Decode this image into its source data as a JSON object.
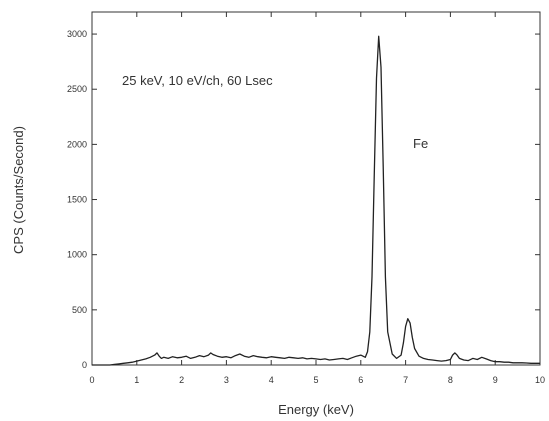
{
  "chart_data": {
    "type": "line",
    "xlabel": "Energy (keV)",
    "ylabel": "CPS (Counts/Second)",
    "xlim": [
      0,
      10
    ],
    "ylim": [
      0,
      3200
    ],
    "xticks": [
      0,
      1,
      2,
      3,
      4,
      5,
      6,
      7,
      8,
      9,
      10
    ],
    "yticks": [
      0,
      500,
      1000,
      1500,
      2000,
      2500,
      3000
    ],
    "grid": false,
    "legend": "none",
    "annotations": [
      {
        "text": "25 keV, 10 eV/ch, 60 Lsec",
        "x": 1.3,
        "y": 2650
      },
      {
        "text": "Fe",
        "x": 7.3,
        "y": 1950
      }
    ],
    "series": [
      {
        "color": "#222222",
        "x": [
          0.0,
          0.1,
          0.2,
          0.3,
          0.4,
          0.5,
          0.6,
          0.7,
          0.8,
          0.9,
          1.0,
          1.1,
          1.2,
          1.3,
          1.4,
          1.45,
          1.5,
          1.55,
          1.6,
          1.7,
          1.8,
          1.9,
          2.0,
          2.1,
          2.2,
          2.3,
          2.4,
          2.5,
          2.6,
          2.65,
          2.7,
          2.8,
          2.9,
          3.0,
          3.1,
          3.2,
          3.3,
          3.4,
          3.5,
          3.6,
          3.7,
          3.8,
          3.9,
          4.0,
          4.1,
          4.2,
          4.3,
          4.4,
          4.5,
          4.6,
          4.7,
          4.8,
          4.9,
          5.0,
          5.1,
          5.2,
          5.3,
          5.4,
          5.5,
          5.6,
          5.7,
          5.8,
          5.9,
          6.0,
          6.1,
          6.15,
          6.2,
          6.25,
          6.3,
          6.35,
          6.4,
          6.45,
          6.5,
          6.55,
          6.6,
          6.7,
          6.8,
          6.9,
          6.95,
          7.0,
          7.05,
          7.1,
          7.15,
          7.2,
          7.3,
          7.4,
          7.5,
          7.6,
          7.7,
          7.8,
          7.9,
          8.0,
          8.05,
          8.1,
          8.15,
          8.2,
          8.3,
          8.4,
          8.5,
          8.6,
          8.7,
          8.8,
          8.9,
          9.0,
          9.1,
          9.2,
          9.3,
          9.4,
          9.5,
          9.6,
          9.7,
          9.8,
          9.9,
          10.0
        ],
        "y": [
          0,
          0,
          0,
          0,
          0,
          5,
          10,
          15,
          20,
          25,
          35,
          45,
          55,
          70,
          90,
          110,
          80,
          60,
          70,
          60,
          75,
          65,
          70,
          80,
          60,
          70,
          85,
          75,
          90,
          110,
          95,
          80,
          70,
          75,
          65,
          85,
          100,
          80,
          70,
          85,
          75,
          70,
          65,
          75,
          70,
          65,
          60,
          70,
          65,
          60,
          65,
          55,
          60,
          55,
          50,
          55,
          45,
          50,
          55,
          60,
          50,
          65,
          80,
          90,
          70,
          120,
          300,
          800,
          1700,
          2600,
          2980,
          2700,
          1800,
          800,
          300,
          100,
          60,
          90,
          200,
          350,
          420,
          380,
          250,
          150,
          80,
          60,
          50,
          45,
          40,
          35,
          40,
          50,
          90,
          110,
          90,
          60,
          45,
          40,
          60,
          50,
          70,
          55,
          40,
          30,
          30,
          25,
          25,
          20,
          20,
          20,
          18,
          15,
          15,
          15
        ]
      }
    ]
  }
}
